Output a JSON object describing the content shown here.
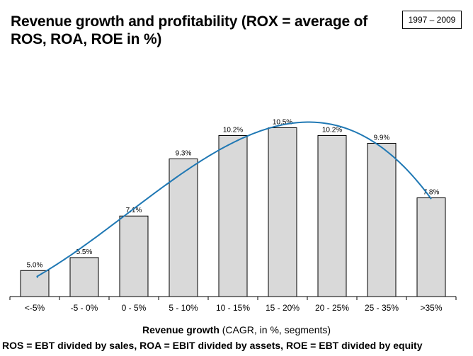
{
  "title": "Revenue growth and profitability  (ROX = average of ROS, ROA, ROE in %)",
  "period": "1997 – 2009",
  "xlabel_bold": "Revenue growth",
  "xlabel_rest": " (CAGR, in %, segments)",
  "footnote": "ROS = EBT divided by  sales, ROA = EBIT divided by assets, ROE = EBT divided by  equity",
  "chart_data": {
    "type": "bar",
    "categories": [
      "<-5%",
      "-5 - 0%",
      "0 - 5%",
      "5 - 10%",
      "10 - 15%",
      "15 - 20%",
      "20 - 25%",
      "25 - 35%",
      ">35%"
    ],
    "values": [
      5.0,
      5.5,
      7.1,
      9.3,
      10.2,
      10.5,
      10.2,
      9.9,
      7.8
    ],
    "data_labels": [
      "5.0%",
      "5.5%",
      "7.1%",
      "9.3%",
      "10.2%",
      "10.5%",
      "10.2%",
      "9.9%",
      "7.8%"
    ],
    "trendline": "polynomial",
    "ylim": [
      4,
      11
    ],
    "bar_color": "#d9d9d9",
    "trend_color": "#1f78b4",
    "grid": false
  }
}
